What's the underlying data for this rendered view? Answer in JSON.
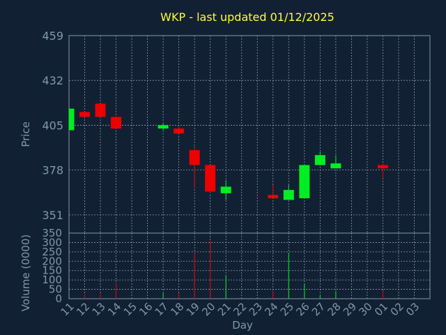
{
  "chart_data": {
    "type": "candlestick",
    "title": "WKP - last updated 01/12/2025",
    "price_panel": {
      "ylabel": "Price",
      "yticks": [
        351,
        378,
        405,
        432,
        459
      ],
      "ylim": [
        340,
        459
      ],
      "grid": true
    },
    "volume_panel": {
      "ylabel": "Volume (0000)",
      "yticks": [
        0,
        50,
        100,
        150,
        200,
        250,
        300,
        350
      ],
      "ylim": [
        0,
        350
      ],
      "grid": true
    },
    "xlabel": "Day",
    "x_ticks": [
      "11",
      "12",
      "13",
      "14",
      "15",
      "16",
      "17",
      "18",
      "19",
      "20",
      "21",
      "22",
      "23",
      "24",
      "25",
      "26",
      "27",
      "28",
      "29",
      "30",
      "01",
      "02",
      "03"
    ],
    "colors": {
      "up": "#00ee22",
      "down": "#ee0000",
      "background": "#122033",
      "plot_border": "#7f98ad",
      "grid": "#8a9cad",
      "title": "#ffff33",
      "axis_text": "#7f98ad"
    },
    "candles": [
      {
        "day": "11",
        "open": 402,
        "high": 415,
        "low": 402,
        "close": 415,
        "volume": 0
      },
      {
        "day": "12",
        "open": 413,
        "high": 413,
        "low": 410,
        "close": 410,
        "volume": 20
      },
      {
        "day": "13",
        "open": 418,
        "high": 418,
        "low": 410,
        "close": 410,
        "volume": 25
      },
      {
        "day": "14",
        "open": 410,
        "high": 410,
        "low": 403,
        "close": 403,
        "volume": 80
      },
      {
        "day": "17",
        "open": 403,
        "high": 406,
        "low": 402,
        "close": 405,
        "volume": 30
      },
      {
        "day": "18",
        "open": 403,
        "high": 404,
        "low": 400,
        "close": 400,
        "volume": 30
      },
      {
        "day": "19",
        "open": 390,
        "high": 393,
        "low": 367,
        "close": 381,
        "volume": 245
      },
      {
        "day": "20",
        "open": 381,
        "high": 381,
        "low": 364,
        "close": 365,
        "volume": 310
      },
      {
        "day": "21",
        "open": 364,
        "high": 372,
        "low": 360,
        "close": 368,
        "volume": 125
      },
      {
        "day": "24",
        "open": 363,
        "high": 369,
        "low": 361,
        "close": 361,
        "volume": 40
      },
      {
        "day": "25",
        "open": 360,
        "high": 369,
        "low": 360,
        "close": 366,
        "volume": 245
      },
      {
        "day": "26",
        "open": 361,
        "high": 381,
        "low": 361,
        "close": 381,
        "volume": 80
      },
      {
        "day": "27",
        "open": 381,
        "high": 389,
        "low": 381,
        "close": 387,
        "volume": 15
      },
      {
        "day": "28",
        "open": 379,
        "high": 387,
        "low": 379,
        "close": 382,
        "volume": 40
      },
      {
        "day": "01",
        "open": 381,
        "high": 382,
        "low": 373,
        "close": 379,
        "volume": 45
      }
    ]
  }
}
